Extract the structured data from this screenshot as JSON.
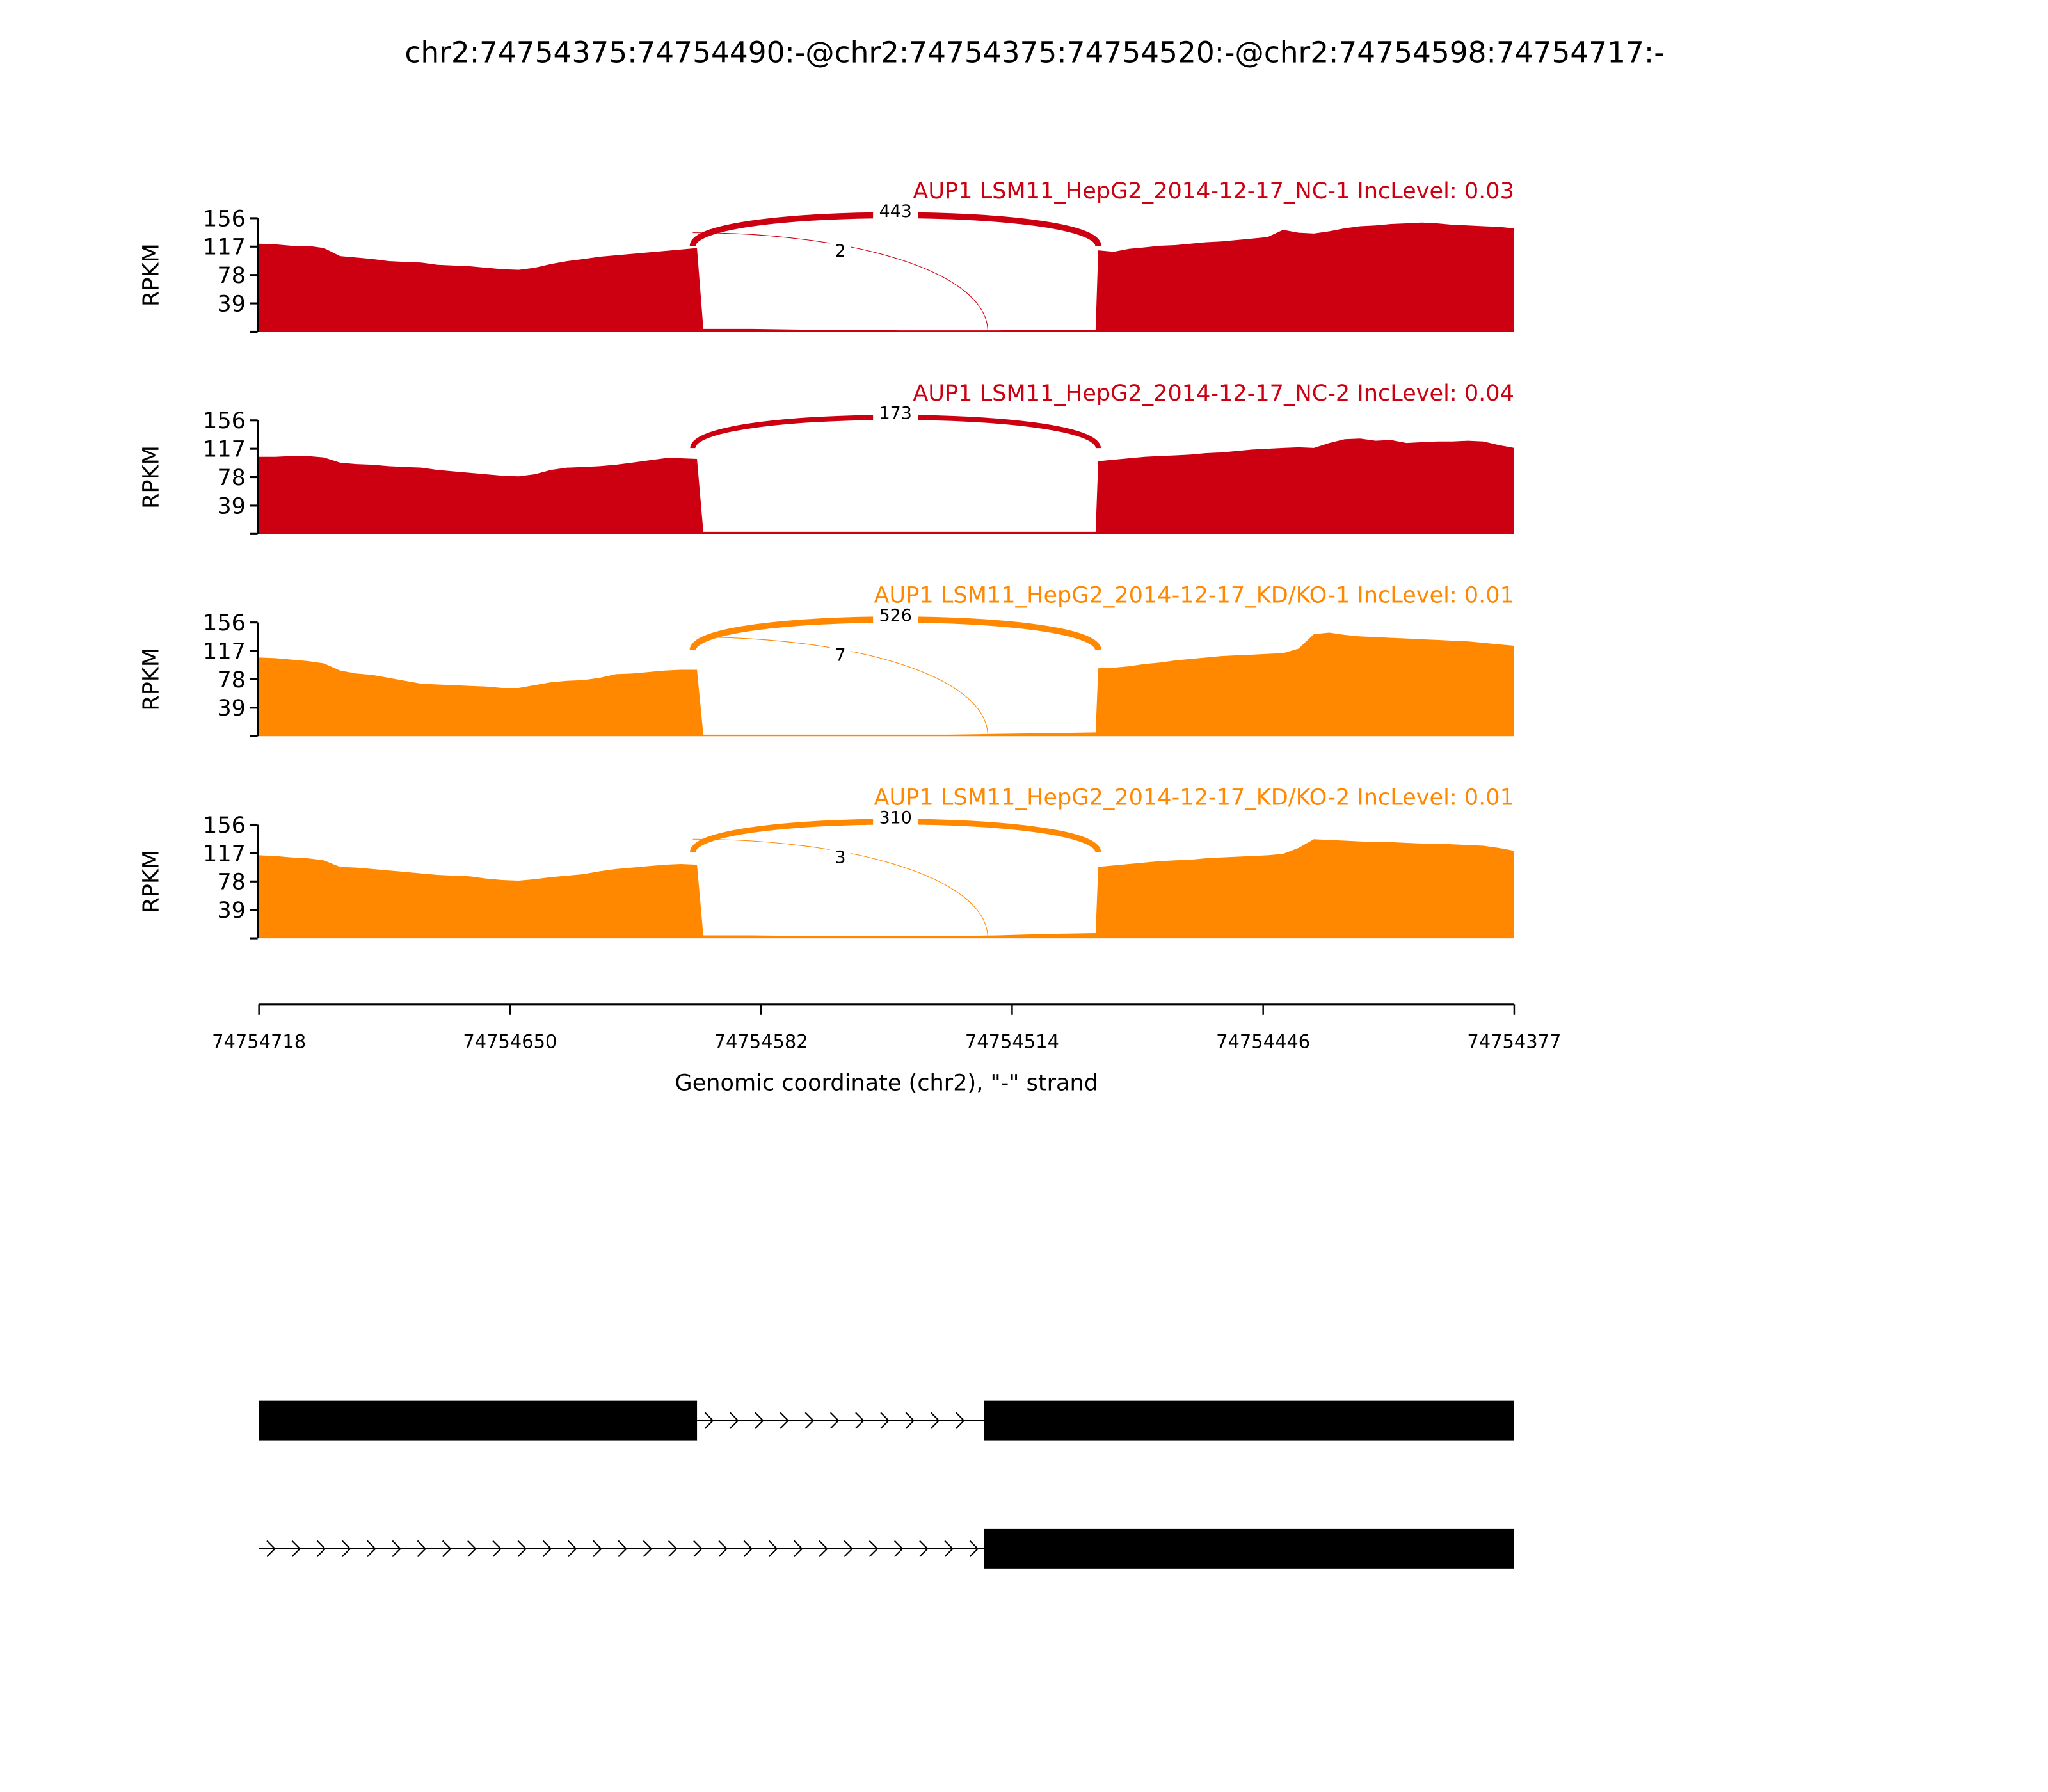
{
  "chart_data": {
    "type": "area",
    "title": "chr2:74754375:74754490:-@chr2:74754375:74754520:-@chr2:74754598:74754717:-",
    "xlabel": "Genomic coordinate (chr2), \"-\" strand",
    "ylabel": "RPKM",
    "xlim": [
      74754718,
      74754377
    ],
    "ylim": [
      0,
      156
    ],
    "yticks": [
      "156",
      "117",
      "78",
      "39"
    ],
    "xticks": [
      "74754718",
      "74754650",
      "74754582",
      "74754514",
      "74754446",
      "74754377"
    ],
    "colors": {
      "NC": "#cc0011",
      "KD": "#ff8800"
    },
    "panels": [
      {
        "title": "AUP1 LSM11_HepG2_2014-12-17_NC-1 IncLevel: 0.03",
        "color": "#cc0011",
        "exon1": [
          121,
          120,
          118,
          118,
          115,
          104,
          102,
          100,
          97,
          96,
          95,
          92,
          91,
          90,
          88,
          86,
          85,
          88,
          93,
          97,
          100,
          103,
          105,
          107,
          109,
          111,
          113,
          115
        ],
        "intron": [
          4,
          4,
          3,
          3,
          2,
          2,
          2,
          3,
          3
        ],
        "exon2": [
          112,
          110,
          114,
          116,
          118,
          119,
          121,
          123,
          124,
          126,
          128,
          130,
          140,
          136,
          135,
          138,
          142,
          145,
          146,
          148,
          149,
          150,
          149,
          147,
          146,
          145,
          144,
          142
        ],
        "junctions": [
          {
            "count": "443",
            "from": 74754598,
            "to": 74754490,
            "major": true
          },
          {
            "count": "2",
            "from": 74754598,
            "to": 74754520,
            "major": false
          }
        ]
      },
      {
        "title": "AUP1 LSM11_HepG2_2014-12-17_NC-2 IncLevel: 0.04",
        "color": "#cc0011",
        "exon1": [
          106,
          106,
          107,
          107,
          105,
          98,
          96,
          95,
          93,
          92,
          91,
          88,
          86,
          84,
          82,
          80,
          79,
          82,
          88,
          91,
          92,
          93,
          95,
          98,
          101,
          104,
          104,
          103
        ],
        "intron": [
          3,
          3,
          3,
          3,
          3,
          3,
          3,
          3,
          3
        ],
        "exon2": [
          100,
          102,
          104,
          106,
          107,
          108,
          109,
          111,
          112,
          114,
          116,
          117,
          118,
          119,
          118,
          125,
          130,
          131,
          128,
          129,
          125,
          126,
          127,
          127,
          128,
          127,
          122,
          118
        ],
        "junctions": [
          {
            "count": "173",
            "from": 74754598,
            "to": 74754490,
            "major": true
          }
        ]
      },
      {
        "title": "AUP1 LSM11_HepG2_2014-12-17_KD/KO-1 IncLevel: 0.01",
        "color": "#ff8800",
        "exon1": [
          108,
          107,
          105,
          103,
          100,
          90,
          86,
          84,
          80,
          76,
          72,
          71,
          70,
          69,
          68,
          66,
          66,
          70,
          74,
          76,
          77,
          80,
          85,
          86,
          88,
          90,
          91,
          91
        ],
        "intron": [
          2,
          2,
          2,
          2,
          2,
          2,
          3,
          4,
          5
        ],
        "exon2": [
          93,
          94,
          96,
          99,
          101,
          104,
          106,
          108,
          110,
          111,
          112,
          113,
          114,
          120,
          140,
          142,
          139,
          137,
          136,
          135,
          134,
          133,
          132,
          131,
          130,
          128,
          126,
          124
        ],
        "junctions": [
          {
            "count": "526",
            "from": 74754598,
            "to": 74754490,
            "major": true
          },
          {
            "count": "7",
            "from": 74754598,
            "to": 74754520,
            "major": false
          }
        ]
      },
      {
        "title": "AUP1 LSM11_HepG2_2014-12-17_KD/KO-2 IncLevel: 0.01",
        "color": "#ff8800",
        "exon1": [
          114,
          113,
          111,
          110,
          107,
          98,
          97,
          95,
          93,
          91,
          89,
          87,
          86,
          85,
          82,
          80,
          79,
          81,
          84,
          86,
          88,
          92,
          95,
          97,
          99,
          101,
          102,
          101
        ],
        "intron": [
          4,
          4,
          3,
          3,
          3,
          3,
          4,
          6,
          7
        ],
        "exon2": [
          98,
          100,
          102,
          104,
          106,
          107,
          108,
          110,
          111,
          112,
          113,
          114,
          116,
          124,
          136,
          135,
          134,
          133,
          132,
          132,
          131,
          130,
          130,
          129,
          128,
          127,
          124,
          120
        ],
        "junctions": [
          {
            "count": "310",
            "from": 74754598,
            "to": 74754490,
            "major": true
          },
          {
            "count": "3",
            "from": 74754598,
            "to": 74754520,
            "major": false
          }
        ]
      }
    ],
    "exons": {
      "exon1": [
        74754718,
        74754598
      ],
      "exon2": [
        74754490,
        74754377
      ]
    },
    "gene_models": [
      {
        "blocks": [
          [
            74754718,
            74754599
          ],
          [
            74754521,
            74754377
          ]
        ],
        "intron": [
          74754599,
          74754521
        ]
      },
      {
        "blocks": [
          [
            74754521,
            74754377
          ]
        ],
        "intron": [
          74754718,
          74754521
        ]
      }
    ]
  }
}
